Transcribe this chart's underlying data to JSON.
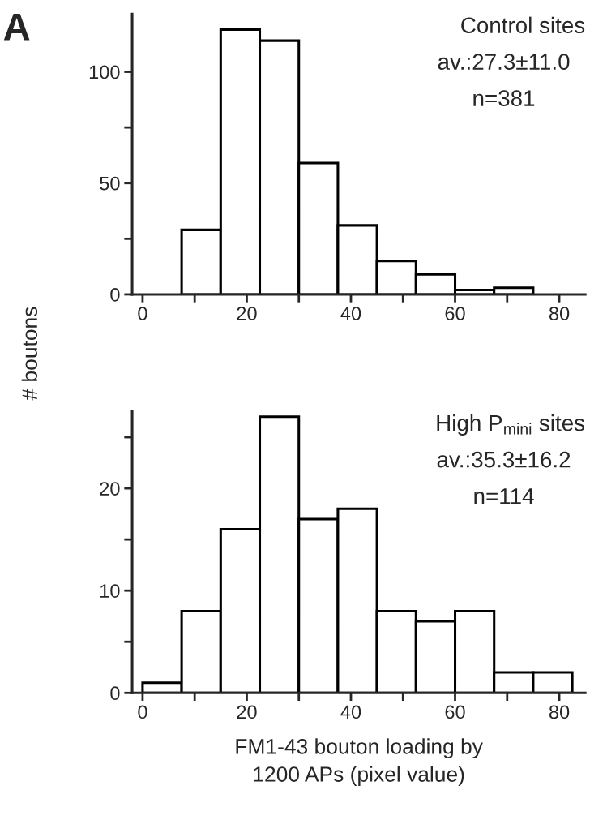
{
  "chart_data": [
    {
      "type": "histogram",
      "ylabel": "# boutons",
      "annotations": [
        "A",
        "Control sites",
        "av.:27.3±11.0",
        "n=381"
      ],
      "bins": [
        0,
        7.5,
        15,
        22.5,
        30,
        37.5,
        45,
        52.5,
        60,
        67.5,
        75
      ],
      "values": [
        0,
        29,
        119,
        114,
        59,
        31,
        15,
        9,
        2,
        3
      ],
      "color": "#ffffff",
      "xlim": [
        -2,
        85
      ],
      "ylim": [
        0,
        126
      ],
      "xticks": [
        0,
        {
          "value": 10,
          "label": null
        },
        20,
        {
          "value": 30,
          "label": null
        },
        40,
        {
          "value": 50,
          "label": null
        },
        60,
        {
          "value": 70,
          "label": null
        },
        80
      ],
      "yticks": [
        0,
        {
          "value": 25,
          "label": null
        },
        50,
        {
          "value": 75,
          "label": null
        },
        100
      ],
      "grid": false,
      "legend": false
    },
    {
      "type": "histogram",
      "xlabel": "FM1-43 bouton loading by\n1200 APs (pixel value)",
      "annotations": [
        "High P$_{mini}$ sites",
        "av.:35.3±16.2",
        "n=114"
      ],
      "bins": [
        0,
        7.5,
        15,
        22.5,
        30,
        37.5,
        45,
        52.5,
        60,
        67.5,
        75,
        82.5
      ],
      "values": [
        1,
        8,
        16,
        27,
        17,
        18,
        8,
        7,
        8,
        2,
        2
      ],
      "color": "#ffffff",
      "xlim": [
        -2,
        85
      ],
      "ylim": [
        0,
        27.5
      ],
      "xticks": [
        0,
        {
          "value": 10,
          "label": null
        },
        20,
        {
          "value": 30,
          "label": null
        },
        40,
        {
          "value": 50,
          "label": null
        },
        60,
        {
          "value": 70,
          "label": null
        },
        80
      ],
      "yticks": [
        0,
        {
          "value": 5,
          "label": null
        },
        10,
        {
          "value": 15,
          "label": null
        },
        20,
        {
          "value": 25,
          "label": null
        }
      ],
      "grid": false,
      "legend": false
    }
  ]
}
